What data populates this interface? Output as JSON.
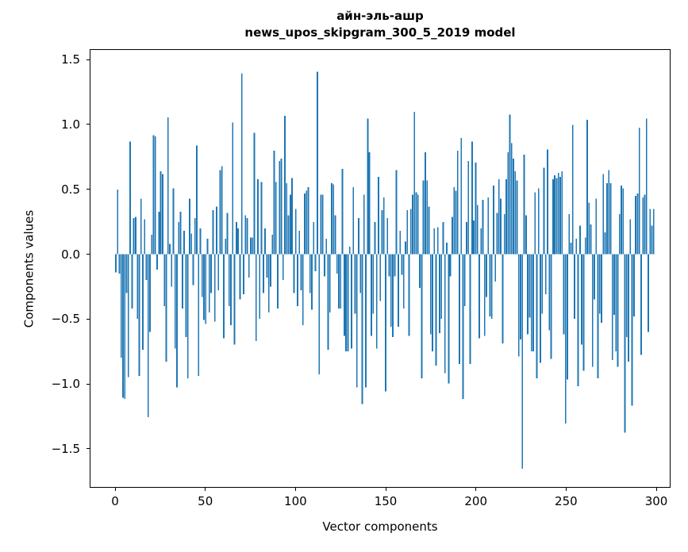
{
  "figure": {
    "title_line1": "айн-эль-ашр",
    "title_line2": "news_upos_skipgram_300_5_2019 model",
    "xlabel": "Vector components",
    "ylabel": "Components values"
  },
  "chart_data": {
    "type": "bar",
    "title": "айн-эль-ашр news_upos_skipgram_300_5_2019 model",
    "xlabel": "Vector components",
    "ylabel": "Components values",
    "bar_color": "#1f77b4",
    "grid": false,
    "legend": null,
    "x_tick_values": [
      0,
      50,
      100,
      150,
      200,
      250,
      300
    ],
    "x_tick_labels": [
      "0",
      "50",
      "100",
      "150",
      "200",
      "250",
      "300"
    ],
    "y_tick_values": [
      1.5,
      1.0,
      0.5,
      0.0,
      -0.5,
      -1.0,
      -1.5
    ],
    "y_tick_labels": [
      "1.5",
      "1.0",
      "0.5",
      "0.0",
      "−0.5",
      "−1.0",
      "−1.5"
    ],
    "xlim": [
      -14.1,
      307.9
    ],
    "ylim": [
      -1.8,
      1.58
    ],
    "x_start": 0,
    "values": [
      -0.14,
      0.5,
      -0.15,
      -0.8,
      -1.11,
      -1.12,
      -0.3,
      -0.95,
      0.87,
      -0.42,
      0.28,
      0.29,
      -0.5,
      -0.94,
      0.43,
      -0.74,
      0.27,
      -0.2,
      -1.26,
      -0.6,
      0.15,
      0.92,
      0.91,
      -0.12,
      0.33,
      0.64,
      0.62,
      -0.4,
      -0.83,
      1.06,
      0.08,
      -0.25,
      0.51,
      -0.73,
      -1.03,
      0.25,
      0.33,
      -0.42,
      0.18,
      -0.64,
      -0.96,
      0.43,
      0.16,
      -0.24,
      0.28,
      0.84,
      -0.94,
      0.2,
      -0.33,
      -0.51,
      -0.54,
      0.12,
      -0.45,
      -0.3,
      0.34,
      -0.52,
      0.37,
      -0.28,
      0.65,
      0.68,
      -0.65,
      0.12,
      0.32,
      -0.4,
      -0.55,
      1.02,
      -0.7,
      0.25,
      0.2,
      -0.35,
      1.4,
      -0.31,
      0.3,
      0.28,
      -0.18,
      0.13,
      0.13,
      0.94,
      -0.67,
      0.58,
      -0.5,
      0.56,
      -0.3,
      0.2,
      -0.18,
      -0.45,
      -0.25,
      0.15,
      0.8,
      0.56,
      -0.42,
      0.72,
      0.74,
      -0.2,
      1.07,
      0.55,
      0.3,
      0.46,
      0.59,
      -0.3,
      0.35,
      -0.4,
      0.18,
      -0.28,
      -0.55,
      0.47,
      0.49,
      0.52,
      -0.3,
      -0.43,
      0.25,
      -0.13,
      1.41,
      -0.93,
      0.46,
      0.46,
      -0.17,
      0.12,
      -0.74,
      -0.45,
      0.55,
      0.54,
      0.3,
      -0.15,
      -0.42,
      -0.42,
      0.66,
      -0.63,
      -0.75,
      -0.75,
      0.06,
      -0.73,
      0.52,
      -0.46,
      -1.03,
      0.28,
      -0.3,
      -1.16,
      0.46,
      -1.03,
      1.05,
      0.79,
      -0.63,
      -0.46,
      0.25,
      -0.73,
      0.6,
      -0.36,
      0.34,
      0.44,
      -1.06,
      0.28,
      -0.17,
      -0.56,
      -0.64,
      -0.17,
      0.65,
      -0.56,
      0.18,
      -0.16,
      -0.42,
      0.1,
      0.34,
      -0.63,
      0.35,
      0.46,
      1.1,
      0.48,
      0.46,
      -0.26,
      -0.96,
      0.57,
      0.79,
      0.57,
      0.37,
      -0.62,
      -0.75,
      0.2,
      -0.86,
      0.21,
      -0.61,
      -0.5,
      0.25,
      -0.92,
      0.09,
      -1.0,
      -0.17,
      0.29,
      0.52,
      0.49,
      0.8,
      -0.85,
      0.9,
      -1.12,
      -0.4,
      0.25,
      0.72,
      -0.85,
      0.87,
      0.26,
      0.71,
      0.38,
      -0.65,
      0.2,
      0.42,
      -0.63,
      -0.33,
      0.44,
      -0.48,
      -0.5,
      0.53,
      -0.21,
      0.32,
      0.58,
      0.43,
      -0.69,
      0.31,
      0.58,
      0.79,
      1.08,
      0.86,
      0.74,
      0.64,
      0.57,
      -0.79,
      -0.66,
      -1.66,
      0.77,
      0.3,
      -0.62,
      -0.49,
      -0.75,
      -0.75,
      0.48,
      -0.96,
      0.51,
      -0.84,
      -0.46,
      0.67,
      -0.31,
      0.81,
      -0.59,
      -0.81,
      0.58,
      0.61,
      0.59,
      0.63,
      0.6,
      0.64,
      -0.62,
      -1.31,
      -0.97,
      0.31,
      0.09,
      1.0,
      -0.5,
      0.12,
      -1.02,
      0.22,
      -0.7,
      -0.9,
      0.13,
      1.04,
      0.4,
      0.23,
      -0.87,
      -0.35,
      0.43,
      -0.96,
      -0.46,
      -0.53,
      0.62,
      0.17,
      0.55,
      0.65,
      0.55,
      -0.82,
      -0.47,
      -0.75,
      -0.87,
      0.31,
      0.53,
      0.51,
      -1.38,
      -0.64,
      -0.83,
      0.27,
      -1.17,
      -0.48,
      0.45,
      0.47,
      0.98,
      -0.78,
      0.44,
      0.46,
      1.05,
      -0.6,
      0.35,
      0.22,
      0.35
    ]
  }
}
